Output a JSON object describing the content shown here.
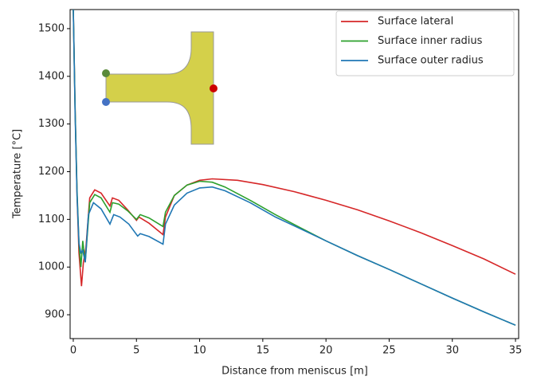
{
  "chart_data": {
    "type": "line",
    "xlabel": "Distance from meniscus [m]",
    "ylabel": "Temperature [°C]",
    "xlim": [
      -0.25,
      35.25
    ],
    "ylim": [
      850,
      1540
    ],
    "xticks": [
      0,
      5,
      10,
      15,
      20,
      25,
      30,
      35
    ],
    "yticks": [
      900,
      1000,
      1100,
      1200,
      1300,
      1400,
      1500
    ],
    "grid": false,
    "legend": "upper right",
    "series": [
      {
        "name": "Surface lateral",
        "color": "#d62728",
        "x": [
          0,
          0.15,
          0.3,
          0.45,
          0.65,
          0.8,
          1.0,
          1.3,
          1.7,
          2.2,
          2.9,
          3.1,
          3.6,
          4.3,
          5.0,
          5.2,
          6.0,
          7.1,
          7.3,
          8.0,
          9.0,
          10.0,
          11.0,
          13.0,
          15.0,
          17.5,
          20.0,
          22.5,
          25.0,
          27.5,
          30.0,
          32.5,
          35.0
        ],
        "values": [
          1540,
          1330,
          1150,
          1030,
          960,
          1010,
          1040,
          1145,
          1162,
          1155,
          1128,
          1145,
          1140,
          1120,
          1098,
          1105,
          1092,
          1068,
          1105,
          1150,
          1172,
          1182,
          1185,
          1182,
          1173,
          1158,
          1140,
          1120,
          1097,
          1072,
          1045,
          1017,
          985
        ]
      },
      {
        "name": "Surface inner radius",
        "color": "#2ca02c",
        "x": [
          0,
          0.15,
          0.3,
          0.45,
          0.6,
          0.75,
          0.95,
          1.3,
          1.7,
          2.2,
          2.9,
          3.1,
          3.6,
          4.3,
          5.0,
          5.3,
          6.0,
          7.1,
          7.3,
          8.0,
          9.0,
          10.0,
          11.0,
          12.0,
          14.0,
          16.0,
          18.0,
          20.0,
          22.5,
          25.0,
          27.5,
          30.0,
          32.5,
          35.0
        ],
        "values": [
          1540,
          1330,
          1160,
          1050,
          1000,
          1055,
          1010,
          1135,
          1152,
          1145,
          1115,
          1135,
          1132,
          1118,
          1100,
          1110,
          1103,
          1085,
          1115,
          1150,
          1172,
          1180,
          1178,
          1168,
          1140,
          1110,
          1082,
          1055,
          1024,
          995,
          965,
          935,
          906,
          878
        ]
      },
      {
        "name": "Surface outer radius",
        "color": "#1f77b4",
        "x": [
          0,
          0.15,
          0.3,
          0.45,
          0.6,
          0.75,
          0.95,
          1.2,
          1.6,
          2.2,
          2.9,
          3.2,
          3.7,
          4.4,
          5.1,
          5.3,
          6.0,
          7.1,
          7.3,
          8.0,
          9.0,
          10.0,
          11.0,
          12.0,
          14.0,
          16.0,
          18.0,
          20.0,
          22.5,
          25.0,
          27.5,
          30.0,
          32.5,
          35.0
        ],
        "values": [
          1540,
          1320,
          1150,
          1050,
          1030,
          1035,
          1010,
          1110,
          1135,
          1122,
          1090,
          1110,
          1105,
          1090,
          1065,
          1070,
          1064,
          1048,
          1090,
          1130,
          1155,
          1166,
          1168,
          1160,
          1135,
          1105,
          1080,
          1055,
          1024,
          995,
          965,
          935,
          906,
          878
        ]
      }
    ]
  }
}
